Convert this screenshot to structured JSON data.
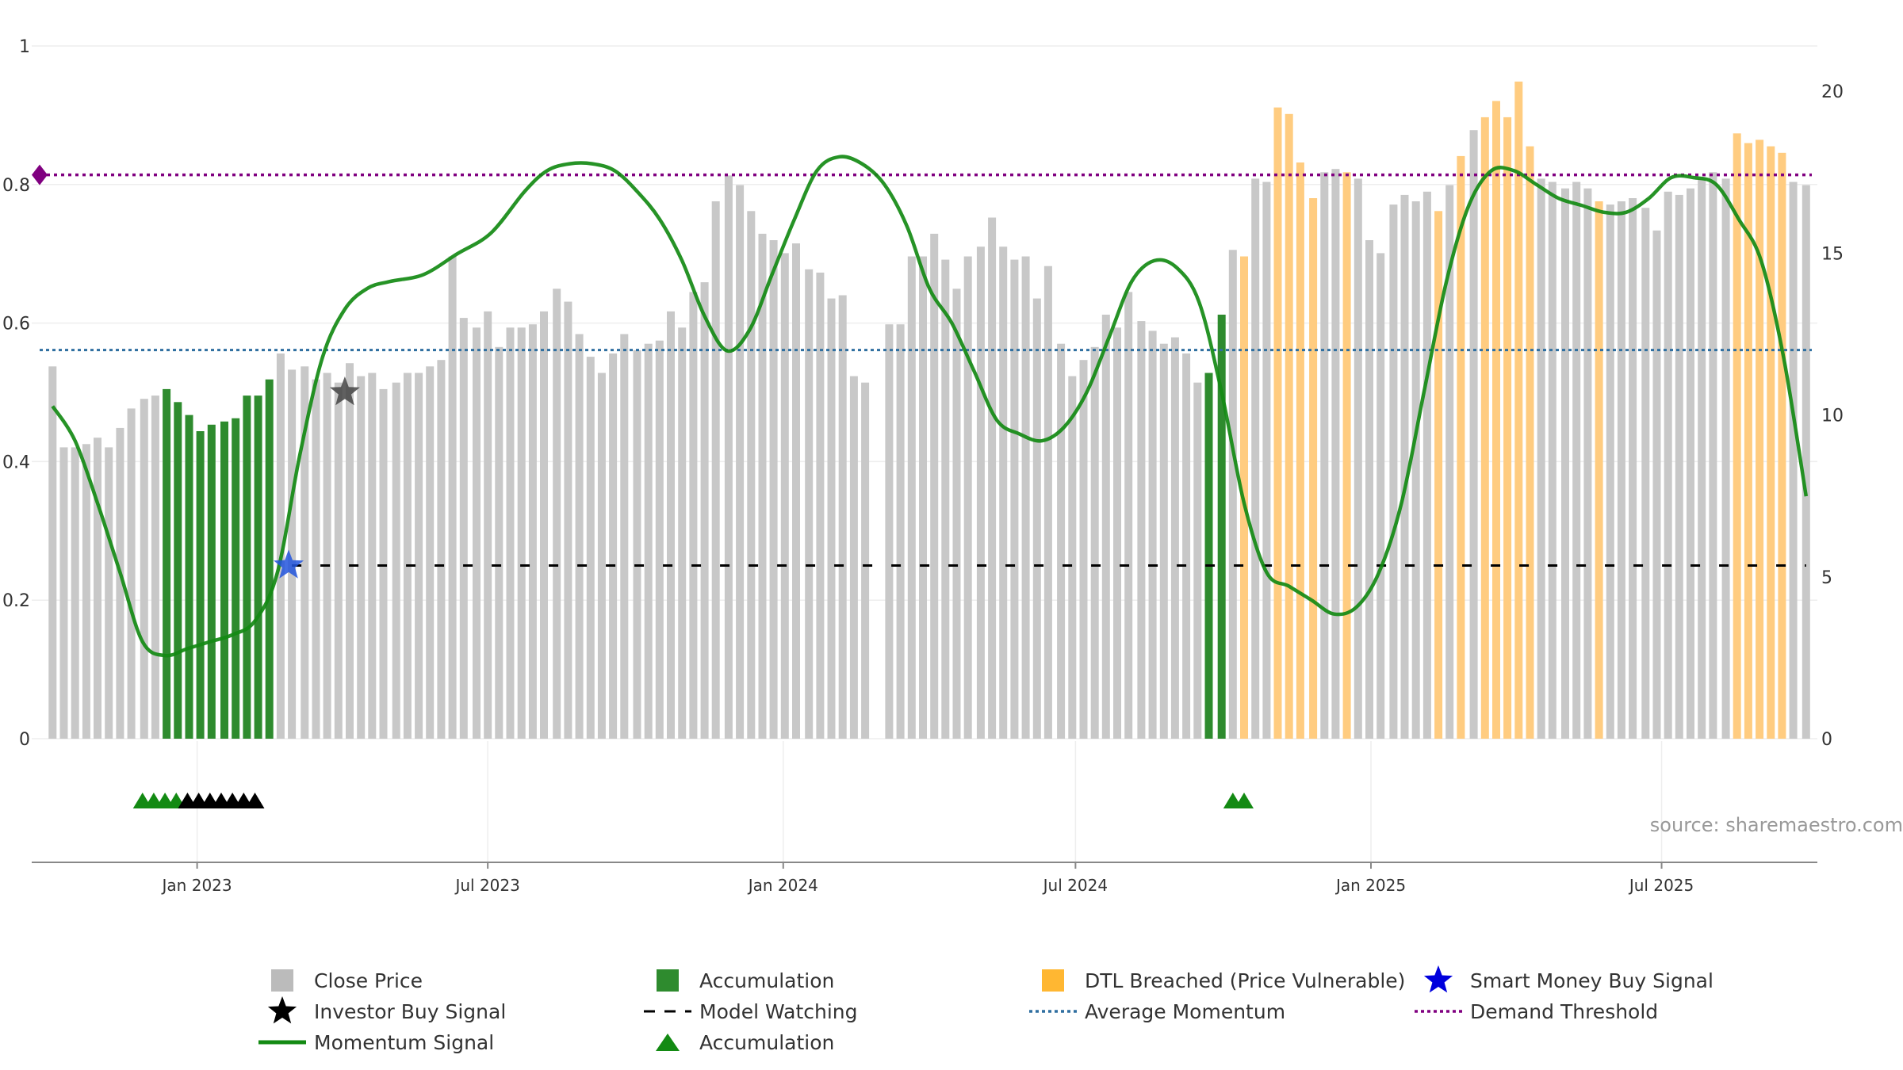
{
  "source_note": "source: sharemaestro.com",
  "legend": [
    {
      "label": "Close Price",
      "marker": "square-gray",
      "color": "#bbbbbb"
    },
    {
      "label": "Accumulation",
      "marker": "square-green",
      "color": "#2e8b2e"
    },
    {
      "label": "DTL Breached (Price Vulnerable)",
      "marker": "square-orange",
      "color": "#ffb732"
    },
    {
      "label": "Smart Money Buy Signal",
      "marker": "star-blue",
      "color": "#0000dd"
    },
    {
      "label": "Investor Buy Signal",
      "marker": "star-black",
      "color": "#000000"
    },
    {
      "label": "Model Watching",
      "marker": "dash-black",
      "color": "#000000"
    },
    {
      "label": "Average Momentum",
      "marker": "dot-blue",
      "color": "#2f6fa0"
    },
    {
      "label": "Demand Threshold",
      "marker": "dot-purple",
      "color": "#800080"
    },
    {
      "label": "Momentum Signal",
      "marker": "line-green",
      "color": "#138a13"
    },
    {
      "label": "Accumulation",
      "marker": "triangle-green",
      "color": "#138a13"
    }
  ],
  "chart_data": {
    "type": "bar",
    "x_start": "2022-10-03",
    "x_end": "2025-09-29",
    "xlim": [
      "2022-09-20",
      "2025-10-06"
    ],
    "x_ticks": [
      {
        "date": "2023-01-01",
        "label": "Jan 2023"
      },
      {
        "date": "2023-07-01",
        "label": "Jul 2023"
      },
      {
        "date": "2024-01-01",
        "label": "Jan 2024"
      },
      {
        "date": "2024-07-01",
        "label": "Jul 2024"
      },
      {
        "date": "2025-01-01",
        "label": "Jan 2025"
      },
      {
        "date": "2025-07-01",
        "label": "Jul 2025"
      }
    ],
    "y_left": {
      "min": 0,
      "max": 1,
      "ticks": [
        0,
        0.2,
        0.4,
        0.6,
        0.8,
        1
      ],
      "tick_labels": [
        "0",
        "0.2",
        "0.4",
        "0.6",
        "0.8",
        "1"
      ]
    },
    "y_right": {
      "min": 0,
      "max": 21.4,
      "ticks": [
        0,
        5,
        10,
        15,
        20
      ],
      "tick_labels": [
        "0",
        "5",
        "10",
        "15",
        "20"
      ]
    },
    "grid": true,
    "colors": {
      "close": "#c8c8c8",
      "accumulation": "#2e8b2e",
      "dtl": "#ffcc80",
      "momentum": "#138a13",
      "avg_momentum": "#2f6fa0",
      "demand": "#800080",
      "watching": "#000000",
      "smart_star": "#2255dd",
      "investor_star": "#444444"
    },
    "close_price": [
      11.5,
      9.0,
      9.0,
      9.1,
      9.3,
      9.0,
      9.6,
      10.2,
      10.5,
      10.6,
      10.8,
      10.4,
      10.0,
      9.5,
      9.7,
      9.8,
      9.9,
      10.6,
      10.6,
      11.1,
      11.9,
      11.4,
      11.5,
      11.1,
      11.3,
      11.0,
      11.6,
      11.2,
      11.3,
      10.8,
      11.0,
      11.3,
      11.3,
      11.5,
      11.7,
      14.9,
      13.0,
      12.7,
      13.2,
      12.1,
      12.7,
      12.7,
      12.8,
      13.2,
      13.9,
      13.5,
      12.5,
      11.8,
      11.3,
      11.9,
      12.5,
      12.0,
      12.2,
      12.3,
      13.2,
      12.7,
      13.8,
      14.1,
      16.6,
      17.4,
      17.1,
      16.3,
      15.6,
      15.4,
      15.0,
      15.3,
      14.5,
      14.4,
      13.6,
      13.7,
      11.2,
      11.0,
      null,
      12.8,
      12.8,
      14.9,
      14.9,
      15.6,
      14.8,
      13.9,
      14.9,
      15.2,
      16.1,
      15.2,
      14.8,
      14.9,
      13.6,
      14.6,
      12.2,
      11.2,
      11.7,
      12.1,
      13.1,
      12.7,
      13.8,
      12.9,
      12.6,
      12.2,
      12.4,
      11.9,
      11.0,
      11.3,
      13.1,
      15.1,
      14.9,
      17.3,
      17.2,
      19.5,
      19.3,
      17.8,
      16.7,
      17.5,
      17.6,
      17.5,
      17.3,
      15.4,
      15.0,
      16.5,
      16.8,
      16.6,
      16.9,
      16.3,
      17.1,
      18.0,
      18.8,
      19.2,
      19.7,
      19.2,
      20.3,
      18.3,
      17.3,
      17.2,
      17.0,
      17.2,
      17.0,
      16.6,
      16.5,
      16.6,
      16.7,
      16.4,
      15.7,
      16.9,
      16.8,
      17.0,
      17.3,
      17.5,
      17.3,
      18.7,
      18.4,
      18.5,
      18.3,
      18.1,
      17.2,
      17.1
    ],
    "bar_status": [
      "c",
      "c",
      "c",
      "c",
      "c",
      "c",
      "c",
      "c",
      "c",
      "c",
      "a",
      "a",
      "a",
      "a",
      "a",
      "a",
      "a",
      "a",
      "a",
      "a",
      "c",
      "c",
      "c",
      "c",
      "c",
      "c",
      "c",
      "c",
      "c",
      "c",
      "c",
      "c",
      "c",
      "c",
      "c",
      "c",
      "c",
      "c",
      "c",
      "c",
      "c",
      "c",
      "c",
      "c",
      "c",
      "c",
      "c",
      "c",
      "c",
      "c",
      "c",
      "c",
      "c",
      "c",
      "c",
      "c",
      "c",
      "c",
      "c",
      "c",
      "c",
      "c",
      "c",
      "c",
      "c",
      "c",
      "c",
      "c",
      "c",
      "c",
      "c",
      "c",
      "c",
      "c",
      "c",
      "c",
      "c",
      "c",
      "c",
      "c",
      "c",
      "c",
      "c",
      "c",
      "c",
      "c",
      "c",
      "c",
      "c",
      "c",
      "c",
      "c",
      "c",
      "c",
      "c",
      "c",
      "c",
      "c",
      "c",
      "c",
      "c",
      "a",
      "a",
      "c",
      "d",
      "c",
      "c",
      "d",
      "d",
      "d",
      "d",
      "c",
      "c",
      "d",
      "c",
      "c",
      "c",
      "c",
      "c",
      "c",
      "c",
      "d",
      "c",
      "d",
      "c",
      "d",
      "d",
      "d",
      "d",
      "d",
      "c",
      "c",
      "c",
      "c",
      "c",
      "d",
      "c",
      "c",
      "c",
      "c",
      "c",
      "c",
      "c",
      "c",
      "c",
      "c",
      "c",
      "d",
      "d",
      "d",
      "d",
      "d",
      "c",
      "c"
    ],
    "momentum": [
      [
        "2022-10-03",
        0.48
      ],
      [
        "2022-10-17",
        0.43
      ],
      [
        "2022-10-31",
        0.34
      ],
      [
        "2022-11-14",
        0.24
      ],
      [
        "2022-11-28",
        0.14
      ],
      [
        "2022-12-12",
        0.12
      ],
      [
        "2022-12-26",
        0.13
      ],
      [
        "2023-01-09",
        0.14
      ],
      [
        "2023-01-23",
        0.15
      ],
      [
        "2023-02-06",
        0.17
      ],
      [
        "2023-02-20",
        0.24
      ],
      [
        "2023-03-06",
        0.41
      ],
      [
        "2023-03-20",
        0.55
      ],
      [
        "2023-04-03",
        0.62
      ],
      [
        "2023-04-17",
        0.65
      ],
      [
        "2023-05-01",
        0.66
      ],
      [
        "2023-05-22",
        0.67
      ],
      [
        "2023-06-12",
        0.7
      ],
      [
        "2023-07-03",
        0.73
      ],
      [
        "2023-07-24",
        0.79
      ],
      [
        "2023-08-07",
        0.82
      ],
      [
        "2023-08-21",
        0.83
      ],
      [
        "2023-09-04",
        0.83
      ],
      [
        "2023-09-18",
        0.82
      ],
      [
        "2023-10-02",
        0.79
      ],
      [
        "2023-10-16",
        0.75
      ],
      [
        "2023-10-30",
        0.69
      ],
      [
        "2023-11-13",
        0.61
      ],
      [
        "2023-11-27",
        0.56
      ],
      [
        "2023-12-11",
        0.59
      ],
      [
        "2023-12-25",
        0.67
      ],
      [
        "2024-01-08",
        0.75
      ],
      [
        "2024-01-22",
        0.82
      ],
      [
        "2024-02-05",
        0.84
      ],
      [
        "2024-02-19",
        0.83
      ],
      [
        "2024-03-04",
        0.8
      ],
      [
        "2024-03-18",
        0.74
      ],
      [
        "2024-04-01",
        0.65
      ],
      [
        "2024-04-15",
        0.6
      ],
      [
        "2024-04-29",
        0.53
      ],
      [
        "2024-05-13",
        0.46
      ],
      [
        "2024-05-27",
        0.44
      ],
      [
        "2024-06-10",
        0.43
      ],
      [
        "2024-06-24",
        0.45
      ],
      [
        "2024-07-08",
        0.5
      ],
      [
        "2024-07-22",
        0.58
      ],
      [
        "2024-08-05",
        0.66
      ],
      [
        "2024-08-19",
        0.69
      ],
      [
        "2024-09-02",
        0.68
      ],
      [
        "2024-09-16",
        0.63
      ],
      [
        "2024-09-30",
        0.5
      ],
      [
        "2024-10-14",
        0.34
      ],
      [
        "2024-10-28",
        0.24
      ],
      [
        "2024-11-11",
        0.22
      ],
      [
        "2024-11-25",
        0.2
      ],
      [
        "2024-12-09",
        0.18
      ],
      [
        "2024-12-23",
        0.19
      ],
      [
        "2025-01-06",
        0.24
      ],
      [
        "2025-01-20",
        0.34
      ],
      [
        "2025-02-03",
        0.5
      ],
      [
        "2025-02-17",
        0.66
      ],
      [
        "2025-03-03",
        0.77
      ],
      [
        "2025-03-17",
        0.82
      ],
      [
        "2025-03-31",
        0.82
      ],
      [
        "2025-04-14",
        0.8
      ],
      [
        "2025-04-28",
        0.78
      ],
      [
        "2025-05-12",
        0.77
      ],
      [
        "2025-05-26",
        0.76
      ],
      [
        "2025-06-09",
        0.76
      ],
      [
        "2025-06-23",
        0.78
      ],
      [
        "2025-07-07",
        0.81
      ],
      [
        "2025-07-21",
        0.81
      ],
      [
        "2025-08-04",
        0.8
      ],
      [
        "2025-08-18",
        0.75
      ],
      [
        "2025-09-01",
        0.69
      ],
      [
        "2025-09-15",
        0.55
      ],
      [
        "2025-09-29",
        0.35
      ]
    ],
    "average_momentum": 0.561,
    "demand_threshold": 0.814,
    "model_watching_level": 0.25,
    "model_watching_range": [
      "2023-03-01",
      "2025-09-29"
    ],
    "smart_money_buy_signal": {
      "date": "2023-02-27",
      "value": 0.25
    },
    "investor_buy_signal": {
      "date": "2023-04-03",
      "value": 0.5
    },
    "accumulation_triangles": [
      "2022-11-28",
      "2022-12-05",
      "2022-12-12",
      "2022-12-19",
      "2022-12-26",
      "2023-01-02",
      "2023-01-09",
      "2023-01-16",
      "2023-01-23",
      "2023-01-30",
      "2023-02-06",
      "2024-10-07",
      "2024-10-14"
    ],
    "accumulation_triangle_colors": [
      "g",
      "g",
      "g",
      "g",
      "k",
      "k",
      "k",
      "k",
      "k",
      "k",
      "k",
      "g",
      "g"
    ]
  }
}
